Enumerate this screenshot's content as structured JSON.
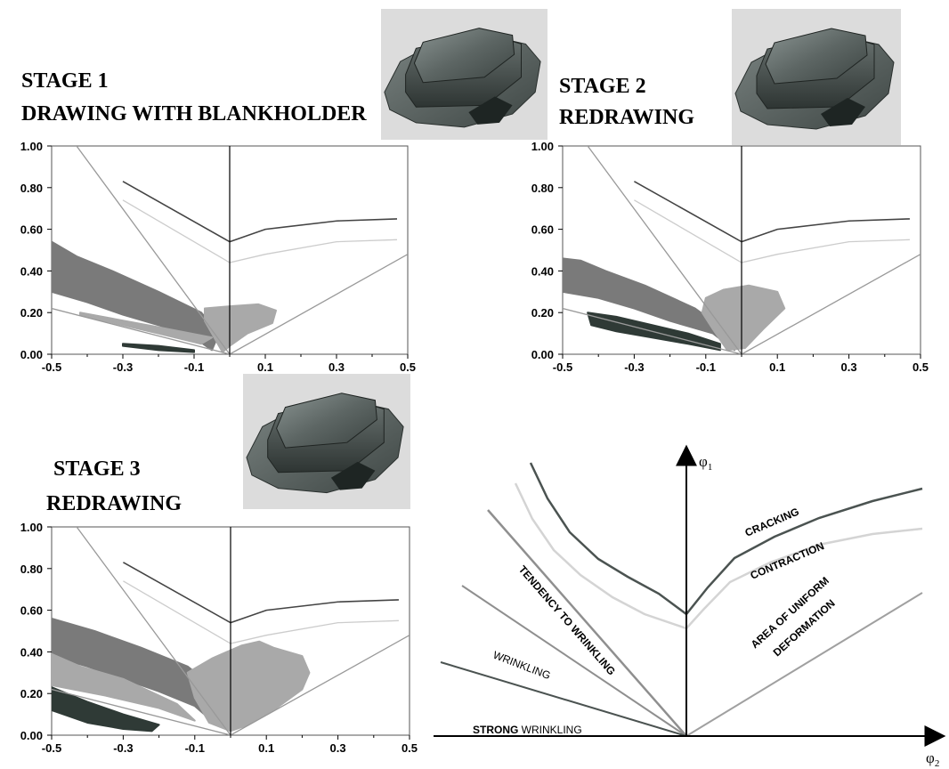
{
  "chart_data": [
    {
      "type": "scatter",
      "stage_label": "STAGE 1",
      "stage_caption": "DRAWING WITH BLANKHOLDER",
      "xlim": [
        -0.5,
        0.5
      ],
      "ylim": [
        0.0,
        1.0
      ],
      "xticks": [
        "-0.5",
        "-0.3",
        "-0.1",
        "0.1",
        "0.3",
        "0.5"
      ],
      "yticks": [
        "1.00",
        "0.80",
        "0.60",
        "0.40",
        "0.20",
        "0.00"
      ],
      "grid": false,
      "series": [
        {
          "role": "forming-limit-curve",
          "color": "#444444",
          "points": [
            [
              -0.3,
              0.83
            ],
            [
              0.0,
              0.54
            ],
            [
              0.1,
              0.6
            ],
            [
              0.3,
              0.64
            ],
            [
              0.47,
              0.65
            ]
          ]
        },
        {
          "role": "contraction-curve",
          "color": "#cccccc",
          "points": [
            [
              -0.3,
              0.74
            ],
            [
              0.0,
              0.44
            ],
            [
              0.1,
              0.48
            ],
            [
              0.3,
              0.54
            ],
            [
              0.47,
              0.55
            ]
          ]
        },
        {
          "role": "wrinkling-boundary",
          "color": "#999999",
          "points": [
            [
              -0.43,
              1.0
            ],
            [
              0.0,
              0.0
            ]
          ]
        },
        {
          "role": "strong-wrinkling-boundary",
          "color": "#999999",
          "points": [
            [
              -0.5,
              0.22
            ],
            [
              0.0,
              0.0
            ]
          ]
        },
        {
          "role": "uniform-deformation-boundary",
          "color": "#999999",
          "points": [
            [
              0.0,
              0.0
            ],
            [
              0.5,
              0.48
            ]
          ]
        },
        {
          "role": "strain-cloud",
          "color": "#7a7a7a",
          "points": [
            [
              -0.5,
              0.54
            ],
            [
              -0.5,
              0.3
            ],
            [
              -0.4,
              0.25
            ],
            [
              -0.3,
              0.19
            ],
            [
              -0.2,
              0.14
            ],
            [
              -0.1,
              0.08
            ],
            [
              -0.05,
              0.02
            ],
            [
              -0.03,
              0.1
            ],
            [
              -0.08,
              0.2
            ],
            [
              -0.2,
              0.3
            ],
            [
              -0.33,
              0.4
            ],
            [
              -0.43,
              0.47
            ]
          ]
        },
        {
          "role": "strain-cloud",
          "color": "#a9a9a9",
          "points": [
            [
              -0.07,
              0.16
            ],
            [
              -0.07,
              0.22
            ],
            [
              0.0,
              0.23
            ],
            [
              0.08,
              0.24
            ],
            [
              0.13,
              0.21
            ],
            [
              0.12,
              0.15
            ],
            [
              0.05,
              0.1
            ],
            [
              0.0,
              0.04
            ],
            [
              -0.02,
              0.01
            ]
          ]
        },
        {
          "role": "strain-cloud",
          "color": "#a9a9a9",
          "points": [
            [
              -0.42,
              0.19
            ],
            [
              -0.4,
              0.18
            ],
            [
              -0.2,
              0.1
            ],
            [
              -0.08,
              0.05
            ],
            [
              -0.05,
              0.08
            ],
            [
              -0.2,
              0.13
            ],
            [
              -0.42,
              0.2
            ]
          ]
        },
        {
          "role": "strain-cloud",
          "color": "#2f3a36",
          "points": [
            [
              -0.3,
              0.04
            ],
            [
              -0.2,
              0.02
            ],
            [
              -0.1,
              0.01
            ],
            [
              -0.1,
              0.02
            ],
            [
              -0.2,
              0.04
            ],
            [
              -0.3,
              0.05
            ]
          ]
        }
      ]
    },
    {
      "type": "scatter",
      "stage_label": "STAGE 2",
      "stage_caption": "REDRAWING",
      "xlim": [
        -0.5,
        0.5
      ],
      "ylim": [
        0.0,
        1.0
      ],
      "xticks": [
        "-0.5",
        "-0.3",
        "-0.1",
        "0.1",
        "0.3",
        "0.5"
      ],
      "yticks": [
        "1.00",
        "0.80",
        "0.60",
        "0.40",
        "0.20",
        "0.00"
      ],
      "grid": false,
      "series": [
        {
          "role": "forming-limit-curve",
          "color": "#444444",
          "points": [
            [
              -0.3,
              0.83
            ],
            [
              0.0,
              0.54
            ],
            [
              0.1,
              0.6
            ],
            [
              0.3,
              0.64
            ],
            [
              0.47,
              0.65
            ]
          ]
        },
        {
          "role": "contraction-curve",
          "color": "#cccccc",
          "points": [
            [
              -0.3,
              0.74
            ],
            [
              0.0,
              0.44
            ],
            [
              0.1,
              0.48
            ],
            [
              0.3,
              0.54
            ],
            [
              0.47,
              0.55
            ]
          ]
        },
        {
          "role": "wrinkling-boundary",
          "color": "#999999",
          "points": [
            [
              -0.43,
              1.0
            ],
            [
              0.0,
              0.0
            ]
          ]
        },
        {
          "role": "strong-wrinkling-boundary",
          "color": "#999999",
          "points": [
            [
              -0.5,
              0.22
            ],
            [
              0.0,
              0.0
            ]
          ]
        },
        {
          "role": "uniform-deformation-boundary",
          "color": "#999999",
          "points": [
            [
              0.0,
              0.0
            ],
            [
              0.5,
              0.48
            ]
          ]
        },
        {
          "role": "strain-cloud",
          "color": "#7a7a7a",
          "points": [
            [
              -0.5,
              0.46
            ],
            [
              -0.5,
              0.3
            ],
            [
              -0.4,
              0.27
            ],
            [
              -0.3,
              0.22
            ],
            [
              -0.2,
              0.16
            ],
            [
              -0.08,
              0.1
            ],
            [
              -0.02,
              0.02
            ],
            [
              -0.05,
              0.12
            ],
            [
              -0.13,
              0.22
            ],
            [
              -0.27,
              0.33
            ],
            [
              -0.38,
              0.4
            ],
            [
              -0.45,
              0.45
            ]
          ]
        },
        {
          "role": "strain-cloud",
          "color": "#a9a9a9",
          "points": [
            [
              -0.1,
              0.27
            ],
            [
              -0.05,
              0.31
            ],
            [
              0.02,
              0.33
            ],
            [
              0.1,
              0.3
            ],
            [
              0.12,
              0.22
            ],
            [
              0.06,
              0.12
            ],
            [
              0.01,
              0.03
            ],
            [
              -0.04,
              0.02
            ],
            [
              -0.08,
              0.12
            ],
            [
              -0.11,
              0.2
            ]
          ]
        },
        {
          "role": "strain-cloud",
          "color": "#2f3a36",
          "points": [
            [
              -0.43,
              0.2
            ],
            [
              -0.42,
              0.14
            ],
            [
              -0.35,
              0.11
            ],
            [
              -0.25,
              0.08
            ],
            [
              -0.15,
              0.05
            ],
            [
              -0.06,
              0.02
            ],
            [
              -0.06,
              0.05
            ],
            [
              -0.15,
              0.1
            ],
            [
              -0.25,
              0.14
            ],
            [
              -0.35,
              0.18
            ]
          ]
        }
      ]
    },
    {
      "type": "scatter",
      "stage_label": "STAGE 3",
      "stage_caption": "REDRAWING",
      "xlim": [
        -0.5,
        0.5
      ],
      "ylim": [
        0.0,
        1.0
      ],
      "xticks": [
        "-0.5",
        "-0.3",
        "-0.1",
        "0.1",
        "0.3",
        "0.5"
      ],
      "yticks": [
        "1.00",
        "0.80",
        "0.60",
        "0.40",
        "0.20",
        "0.00"
      ],
      "grid": false,
      "series": [
        {
          "role": "forming-limit-curve",
          "color": "#444444",
          "points": [
            [
              -0.3,
              0.83
            ],
            [
              0.0,
              0.54
            ],
            [
              0.1,
              0.6
            ],
            [
              0.3,
              0.64
            ],
            [
              0.47,
              0.65
            ]
          ]
        },
        {
          "role": "contraction-curve",
          "color": "#cccccc",
          "points": [
            [
              -0.3,
              0.74
            ],
            [
              0.0,
              0.44
            ],
            [
              0.1,
              0.48
            ],
            [
              0.3,
              0.54
            ],
            [
              0.47,
              0.55
            ]
          ]
        },
        {
          "role": "wrinkling-boundary",
          "color": "#999999",
          "points": [
            [
              -0.43,
              1.0
            ],
            [
              0.0,
              0.0
            ]
          ]
        },
        {
          "role": "strong-wrinkling-boundary",
          "color": "#999999",
          "points": [
            [
              -0.5,
              0.22
            ],
            [
              0.0,
              0.0
            ]
          ]
        },
        {
          "role": "uniform-deformation-boundary",
          "color": "#999999",
          "points": [
            [
              0.0,
              0.0
            ],
            [
              0.5,
              0.48
            ]
          ]
        },
        {
          "role": "strain-cloud",
          "color": "#7a7a7a",
          "points": [
            [
              -0.5,
              0.56
            ],
            [
              -0.5,
              0.38
            ],
            [
              -0.4,
              0.33
            ],
            [
              -0.3,
              0.27
            ],
            [
              -0.2,
              0.21
            ],
            [
              -0.1,
              0.14
            ],
            [
              -0.04,
              0.05
            ],
            [
              -0.04,
              0.22
            ],
            [
              -0.12,
              0.33
            ],
            [
              -0.25,
              0.42
            ],
            [
              -0.38,
              0.5
            ]
          ]
        },
        {
          "role": "strain-cloud",
          "color": "#a9a9a9",
          "points": [
            [
              -0.5,
              0.39
            ],
            [
              -0.5,
              0.24
            ],
            [
              -0.35,
              0.19
            ],
            [
              -0.2,
              0.13
            ],
            [
              -0.1,
              0.07
            ],
            [
              -0.15,
              0.15
            ],
            [
              -0.3,
              0.27
            ],
            [
              -0.42,
              0.33
            ]
          ]
        },
        {
          "role": "strain-cloud",
          "color": "#a9a9a9",
          "points": [
            [
              -0.12,
              0.3
            ],
            [
              -0.05,
              0.37
            ],
            [
              0.03,
              0.43
            ],
            [
              0.08,
              0.45
            ],
            [
              0.12,
              0.42
            ],
            [
              0.2,
              0.38
            ],
            [
              0.22,
              0.3
            ],
            [
              0.2,
              0.22
            ],
            [
              0.12,
              0.12
            ],
            [
              0.05,
              0.05
            ],
            [
              0.0,
              0.02
            ],
            [
              -0.06,
              0.06
            ],
            [
              -0.1,
              0.18
            ]
          ]
        },
        {
          "role": "strain-cloud",
          "color": "#2f3a36",
          "points": [
            [
              -0.5,
              0.23
            ],
            [
              -0.5,
              0.12
            ],
            [
              -0.4,
              0.06
            ],
            [
              -0.3,
              0.03
            ],
            [
              -0.22,
              0.02
            ],
            [
              -0.2,
              0.05
            ],
            [
              -0.3,
              0.1
            ],
            [
              -0.4,
              0.16
            ]
          ]
        }
      ]
    }
  ],
  "diagram": {
    "y_axis_label": "φ",
    "y_axis_sub": "1",
    "x_axis_label": "φ",
    "x_axis_sub": "2",
    "region_labels": {
      "cracking": "CRACKING",
      "contraction": "CONTRACTION",
      "uniform_1": "AREA OF UNIFORM",
      "uniform_2": "DEFORMATION",
      "tendency": "TENDENCY TO WRINKLING",
      "wrinkling": "WRINKLING",
      "strong_bold": "STRONG",
      "strong_rest": " WRINKLING"
    }
  },
  "images": [
    {
      "name": "deep-drawn-part-stage1"
    },
    {
      "name": "deep-drawn-part-stage2"
    },
    {
      "name": "deep-drawn-part-stage3"
    }
  ]
}
